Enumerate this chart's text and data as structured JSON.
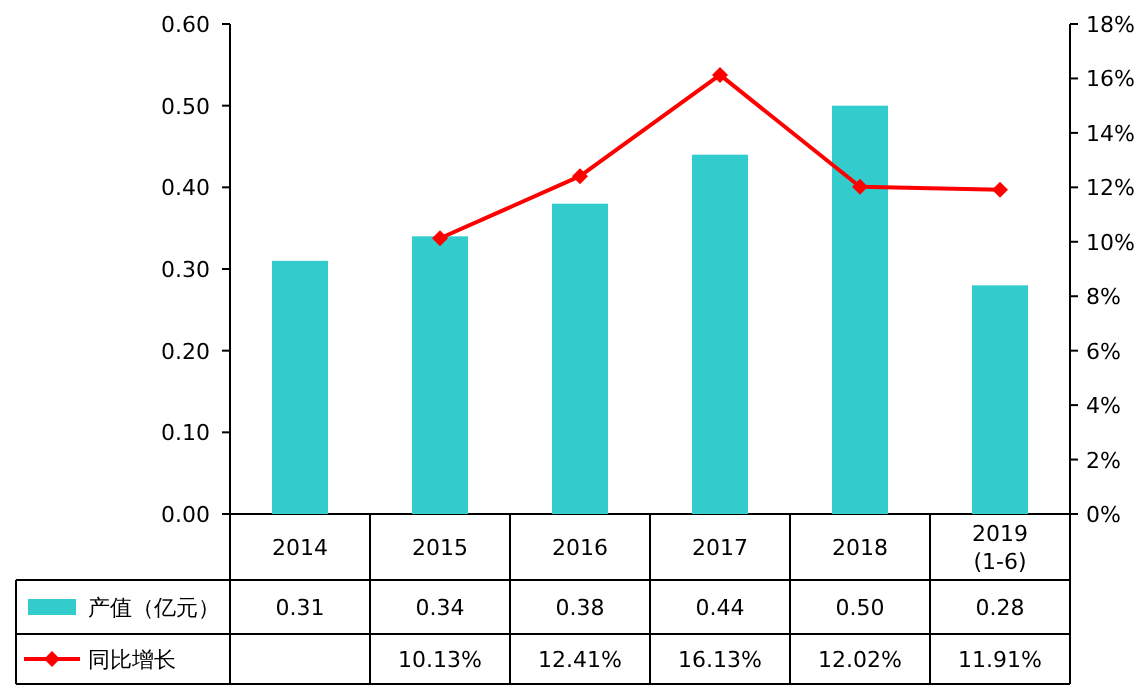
{
  "chart_data": {
    "type": "bar",
    "categories": [
      "2014",
      "2015",
      "2016",
      "2017",
      "2018",
      "2019 (1-6)"
    ],
    "series": [
      {
        "name": "产值（亿元）",
        "color": "#33cccc",
        "values": [
          0.31,
          0.34,
          0.38,
          0.44,
          0.5,
          0.28
        ],
        "value_labels": [
          "0.31",
          "0.34",
          "0.38",
          "0.44",
          "0.50",
          "0.28"
        ]
      },
      {
        "name": "同比增长",
        "type": "line",
        "axis": "y2",
        "color": "#ff0000",
        "marker": "diamond",
        "values": [
          null,
          10.13,
          12.41,
          16.13,
          12.02,
          11.91
        ],
        "value_labels": [
          null,
          "10.13%",
          "12.41%",
          "16.13%",
          "12.02%",
          "11.91%"
        ]
      }
    ],
    "ylim": [
      0,
      0.6
    ],
    "yticks": [
      {
        "value": 0,
        "label": "0.00"
      },
      {
        "value": 0.1,
        "label": "0.10"
      },
      {
        "value": 0.2,
        "label": "0.20"
      },
      {
        "value": 0.3,
        "label": "0.30"
      },
      {
        "value": 0.4,
        "label": "0.40"
      },
      {
        "value": 0.5,
        "label": "0.50"
      },
      {
        "value": 0.6,
        "label": "0.60"
      }
    ],
    "y2lim": [
      0,
      18
    ],
    "y2ticks": [
      {
        "value": 0,
        "label": "0%"
      },
      {
        "value": 2,
        "label": "2%"
      },
      {
        "value": 4,
        "label": "4%"
      },
      {
        "value": 6,
        "label": "6%"
      },
      {
        "value": 8,
        "label": "8%"
      },
      {
        "value": 10,
        "label": "10%"
      },
      {
        "value": 12,
        "label": "12%"
      },
      {
        "value": 14,
        "label": "14%"
      },
      {
        "value": 16,
        "label": "16%"
      },
      {
        "value": 18,
        "label": "18%"
      }
    ],
    "grid": false,
    "legend": "bottom"
  }
}
